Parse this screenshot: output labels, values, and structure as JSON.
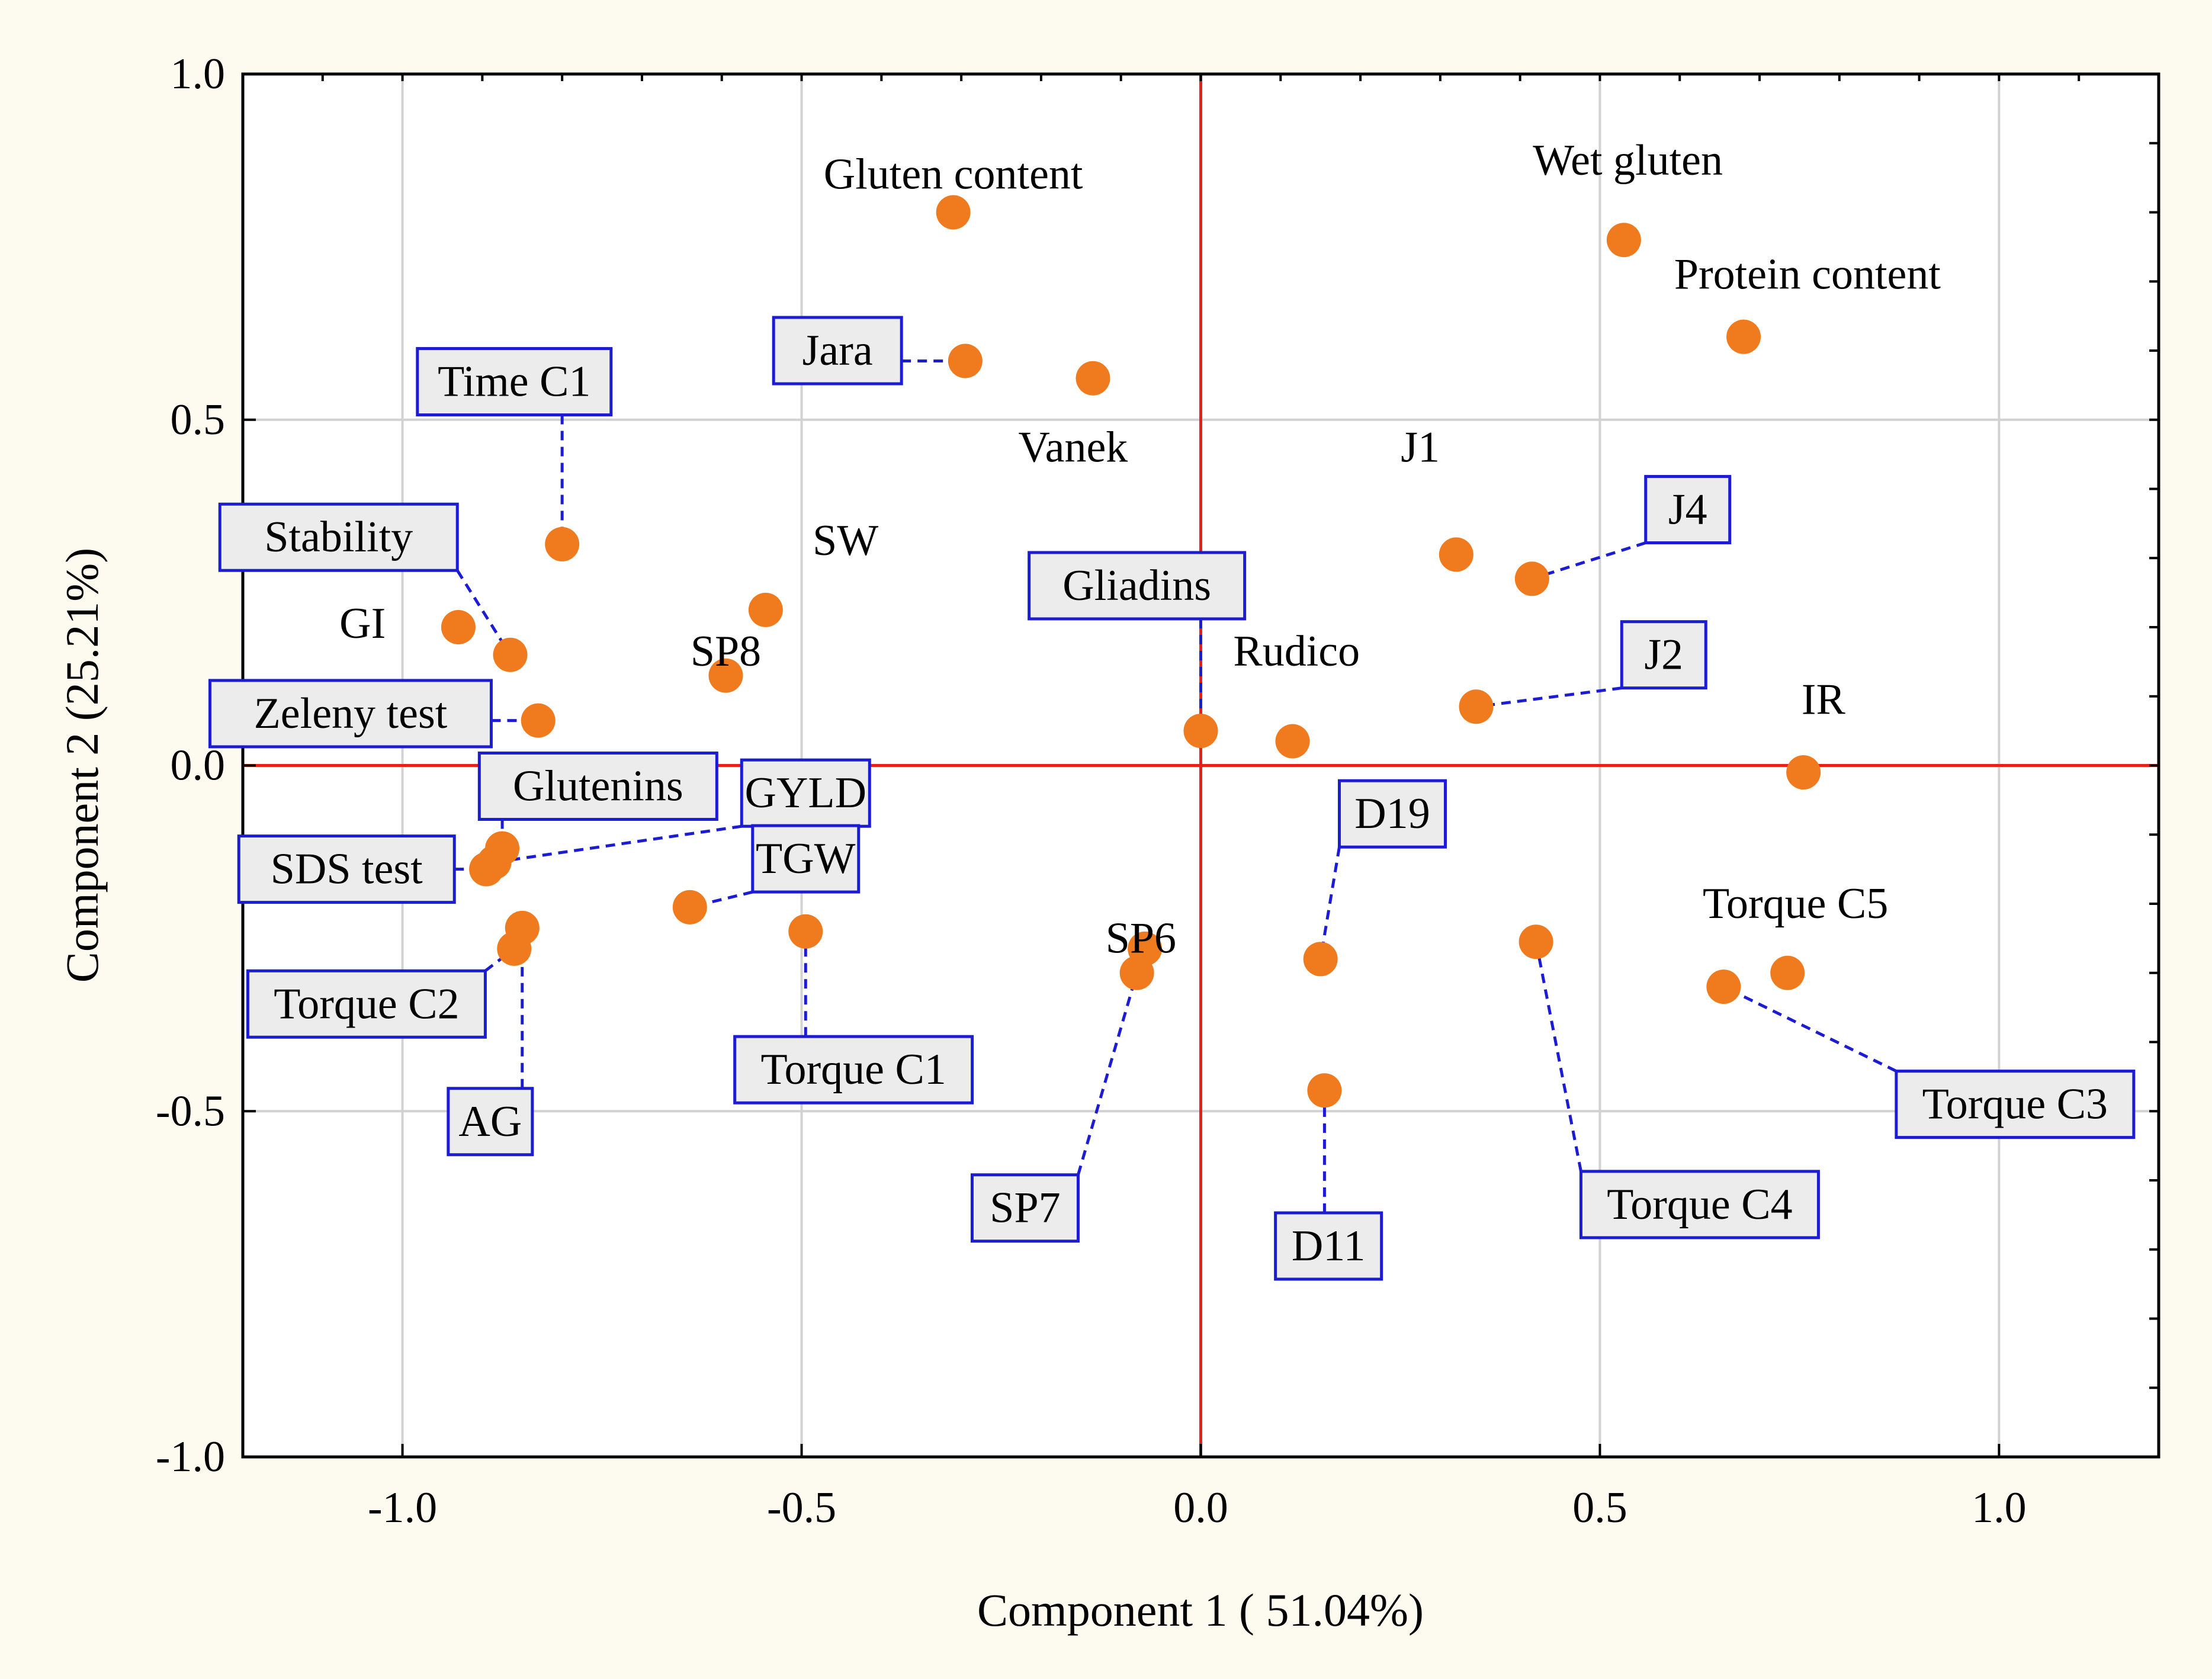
{
  "chart_data": {
    "type": "scatter",
    "title": "",
    "xlabel": "Component 1 ( 51.04%)",
    "ylabel": "Component 2 (25.21%)",
    "xlim": [
      -1.2,
      1.2
    ],
    "ylim": [
      -1.0,
      1.0
    ],
    "xticks": [
      -1.0,
      -0.5,
      0.0,
      0.5,
      1.0
    ],
    "xtick_labels": [
      "-1.0",
      "-0.5",
      "0.0",
      "0.5",
      "1.0"
    ],
    "yticks": [
      -1.0,
      -0.5,
      0.0,
      0.5,
      1.0
    ],
    "ytick_labels": [
      "-1.0",
      "-0.5",
      "0.0",
      "0.5",
      "1.0"
    ],
    "grid": true,
    "reference_lines": {
      "x": 0.0,
      "y": 0.0,
      "color": "#e8201a"
    },
    "point_color": "#f07a1e",
    "label_box_color": "#1c1cd2",
    "leader_line_color": "#1c1cd2",
    "points": [
      {
        "name": "Gluten content",
        "x": -0.31,
        "y": 0.8
      },
      {
        "name": "Wet gluten",
        "x": 0.53,
        "y": 0.76
      },
      {
        "name": "Protein content",
        "x": 0.68,
        "y": 0.62
      },
      {
        "name": "Jara",
        "x": -0.295,
        "y": 0.585
      },
      {
        "name": "Vanek",
        "x": -0.135,
        "y": 0.56
      },
      {
        "name": "Time C1",
        "x": -0.8,
        "y": 0.32
      },
      {
        "name": "J1",
        "x": 0.32,
        "y": 0.305
      },
      {
        "name": "J4",
        "x": 0.415,
        "y": 0.27
      },
      {
        "name": "SW",
        "x": -0.545,
        "y": 0.225
      },
      {
        "name": "GI",
        "x": -0.93,
        "y": 0.2
      },
      {
        "name": "Stability",
        "x": -0.865,
        "y": 0.16
      },
      {
        "name": "SP8",
        "x": -0.595,
        "y": 0.13
      },
      {
        "name": "Zeleny test",
        "x": -0.83,
        "y": 0.065
      },
      {
        "name": "Gliadins",
        "x": 0.0,
        "y": 0.05
      },
      {
        "name": "Rudico",
        "x": 0.115,
        "y": 0.035
      },
      {
        "name": "J2",
        "x": 0.345,
        "y": 0.085
      },
      {
        "name": "IR",
        "x": 0.755,
        "y": -0.01
      },
      {
        "name": "Glutenins",
        "x": -0.875,
        "y": -0.12
      },
      {
        "name": "SDS test",
        "x": -0.895,
        "y": -0.15
      },
      {
        "name": "GYLD",
        "x": -0.885,
        "y": -0.14
      },
      {
        "name": "TGW",
        "x": -0.64,
        "y": -0.205
      },
      {
        "name": "Torque C1",
        "x": -0.495,
        "y": -0.24
      },
      {
        "name": "Torque C2",
        "x": -0.86,
        "y": -0.265
      },
      {
        "name": "AG",
        "x": -0.85,
        "y": -0.235
      },
      {
        "name": "SP6",
        "x": -0.07,
        "y": -0.265
      },
      {
        "name": "SP7",
        "x": -0.08,
        "y": -0.3
      },
      {
        "name": "D19",
        "x": 0.15,
        "y": -0.28
      },
      {
        "name": "D11",
        "x": 0.155,
        "y": -0.47
      },
      {
        "name": "Torque C4",
        "x": 0.42,
        "y": -0.255
      },
      {
        "name": "Torque C5",
        "x": 0.735,
        "y": -0.3
      },
      {
        "name": "Torque C3",
        "x": 0.655,
        "y": -0.32
      }
    ],
    "labels": [
      {
        "text": "Gluten content",
        "boxed": false,
        "lx": -0.31,
        "ly": 0.855,
        "anchor": "middle",
        "point": null
      },
      {
        "text": "Wet gluten",
        "boxed": false,
        "lx": 0.535,
        "ly": 0.875,
        "anchor": "middle",
        "point": null
      },
      {
        "text": "Protein content",
        "boxed": false,
        "lx": 0.76,
        "ly": 0.71,
        "anchor": "middle",
        "point": null
      },
      {
        "text": "Vanek",
        "boxed": false,
        "lx": -0.16,
        "ly": 0.46,
        "anchor": "middle",
        "point": null
      },
      {
        "text": "J1",
        "boxed": false,
        "lx": 0.275,
        "ly": 0.46,
        "anchor": "middle",
        "point": null
      },
      {
        "text": "SW",
        "boxed": false,
        "lx": -0.445,
        "ly": 0.325,
        "anchor": "middle",
        "point": null
      },
      {
        "text": "GI",
        "boxed": false,
        "lx": -1.05,
        "ly": 0.205,
        "anchor": "middle",
        "point": null
      },
      {
        "text": "SP8",
        "boxed": false,
        "lx": -0.595,
        "ly": 0.165,
        "anchor": "middle",
        "point": null
      },
      {
        "text": "Rudico",
        "boxed": false,
        "lx": 0.12,
        "ly": 0.165,
        "anchor": "middle",
        "point": null
      },
      {
        "text": "IR",
        "boxed": false,
        "lx": 0.78,
        "ly": 0.095,
        "anchor": "middle",
        "point": null
      },
      {
        "text": "Torque C5",
        "boxed": false,
        "lx": 0.745,
        "ly": -0.2,
        "anchor": "middle",
        "point": null
      },
      {
        "text": "SP6",
        "boxed": false,
        "lx": -0.075,
        "ly": -0.25,
        "anchor": "middle",
        "point": null
      },
      {
        "text": "Jara",
        "boxed": true,
        "lx": -0.455,
        "ly": 0.6,
        "anchor": "middle",
        "point": "Jara"
      },
      {
        "text": "Time C1",
        "boxed": true,
        "lx": -0.86,
        "ly": 0.555,
        "anchor": "middle",
        "point": "Time C1"
      },
      {
        "text": "Stability",
        "boxed": true,
        "lx": -1.08,
        "ly": 0.33,
        "anchor": "middle",
        "point": "Stability"
      },
      {
        "text": "Zeleny test",
        "boxed": true,
        "lx": -1.065,
        "ly": 0.075,
        "anchor": "middle",
        "point": "Zeleny test"
      },
      {
        "text": "Glutenins",
        "boxed": true,
        "lx": -0.755,
        "ly": -0.03,
        "anchor": "middle",
        "point": "Glutenins"
      },
      {
        "text": "GYLD",
        "boxed": true,
        "lx": -0.495,
        "ly": -0.04,
        "anchor": "middle",
        "point": "GYLD"
      },
      {
        "text": "SDS test",
        "boxed": true,
        "lx": -1.07,
        "ly": -0.15,
        "anchor": "middle",
        "point": "SDS test"
      },
      {
        "text": "TGW",
        "boxed": true,
        "lx": -0.495,
        "ly": -0.135,
        "anchor": "middle",
        "point": "TGW"
      },
      {
        "text": "Torque C2",
        "boxed": true,
        "lx": -1.045,
        "ly": -0.345,
        "anchor": "middle",
        "point": "Torque C2"
      },
      {
        "text": "AG",
        "boxed": true,
        "lx": -0.89,
        "ly": -0.515,
        "anchor": "middle",
        "point": "AG"
      },
      {
        "text": "Torque C1",
        "boxed": true,
        "lx": -0.435,
        "ly": -0.44,
        "anchor": "middle",
        "point": "Torque C1"
      },
      {
        "text": "Gliadins",
        "boxed": true,
        "lx": -0.08,
        "ly": 0.26,
        "anchor": "middle",
        "point": "Gliadins"
      },
      {
        "text": "J4",
        "boxed": true,
        "lx": 0.61,
        "ly": 0.37,
        "anchor": "middle",
        "point": "J4"
      },
      {
        "text": "J2",
        "boxed": true,
        "lx": 0.58,
        "ly": 0.16,
        "anchor": "middle",
        "point": "J2"
      },
      {
        "text": "D19",
        "boxed": true,
        "lx": 0.24,
        "ly": -0.07,
        "anchor": "middle",
        "point": "D19"
      },
      {
        "text": "SP7",
        "boxed": true,
        "lx": -0.22,
        "ly": -0.64,
        "anchor": "middle",
        "point": "SP7"
      },
      {
        "text": "D11",
        "boxed": true,
        "lx": 0.16,
        "ly": -0.695,
        "anchor": "middle",
        "point": "D11"
      },
      {
        "text": "Torque C4",
        "boxed": true,
        "lx": 0.625,
        "ly": -0.635,
        "anchor": "middle",
        "point": "Torque C4"
      },
      {
        "text": "Torque C3",
        "boxed": true,
        "lx": 1.02,
        "ly": -0.49,
        "anchor": "middle",
        "point": "Torque C3"
      }
    ]
  }
}
